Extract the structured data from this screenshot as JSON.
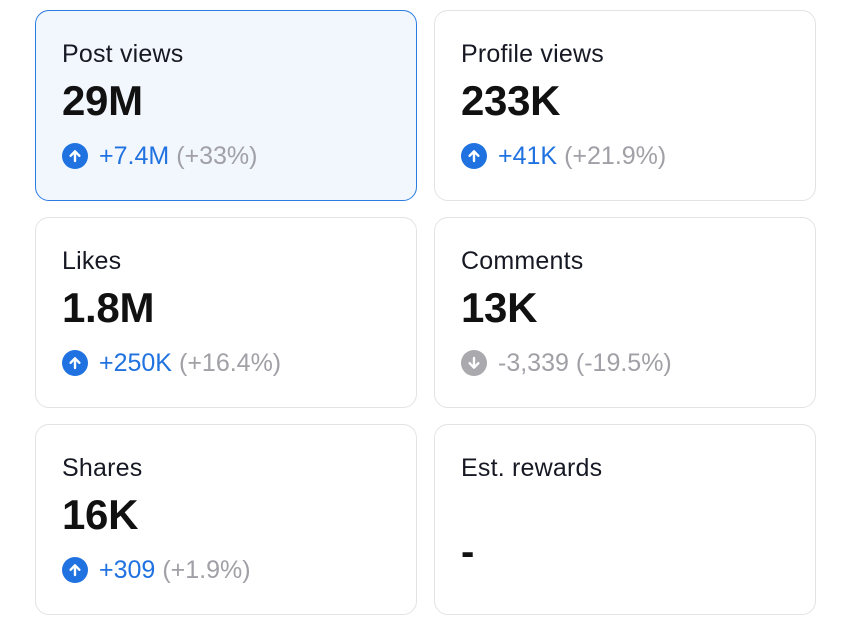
{
  "colors": {
    "accent": "#1f72e0",
    "muted": "#a0a0a6",
    "selected_bg": "#f2f7fe",
    "selected_border": "#2c7be0",
    "card_border": "#e3e3e6"
  },
  "cards": [
    {
      "label": "Post views",
      "value": "29M",
      "change": "+7.4M",
      "pct": "(+33%)",
      "trend": "up",
      "trend_icon": "arrow-up-circle-icon",
      "selected": true
    },
    {
      "label": "Profile views",
      "value": "233K",
      "change": "+41K",
      "pct": "(+21.9%)",
      "trend": "up",
      "trend_icon": "arrow-up-circle-icon",
      "selected": false
    },
    {
      "label": "Likes",
      "value": "1.8M",
      "change": "+250K",
      "pct": "(+16.4%)",
      "trend": "up",
      "trend_icon": "arrow-up-circle-icon",
      "selected": false
    },
    {
      "label": "Comments",
      "value": "13K",
      "change": "-3,339",
      "pct": "(-19.5%)",
      "trend": "down",
      "trend_icon": "arrow-down-circle-icon",
      "selected": false
    },
    {
      "label": "Shares",
      "value": "16K",
      "change": "+309",
      "pct": "(+1.9%)",
      "trend": "up",
      "trend_icon": "arrow-up-circle-icon",
      "selected": false
    },
    {
      "label": "Est. rewards",
      "value": "-",
      "selected": false
    }
  ]
}
